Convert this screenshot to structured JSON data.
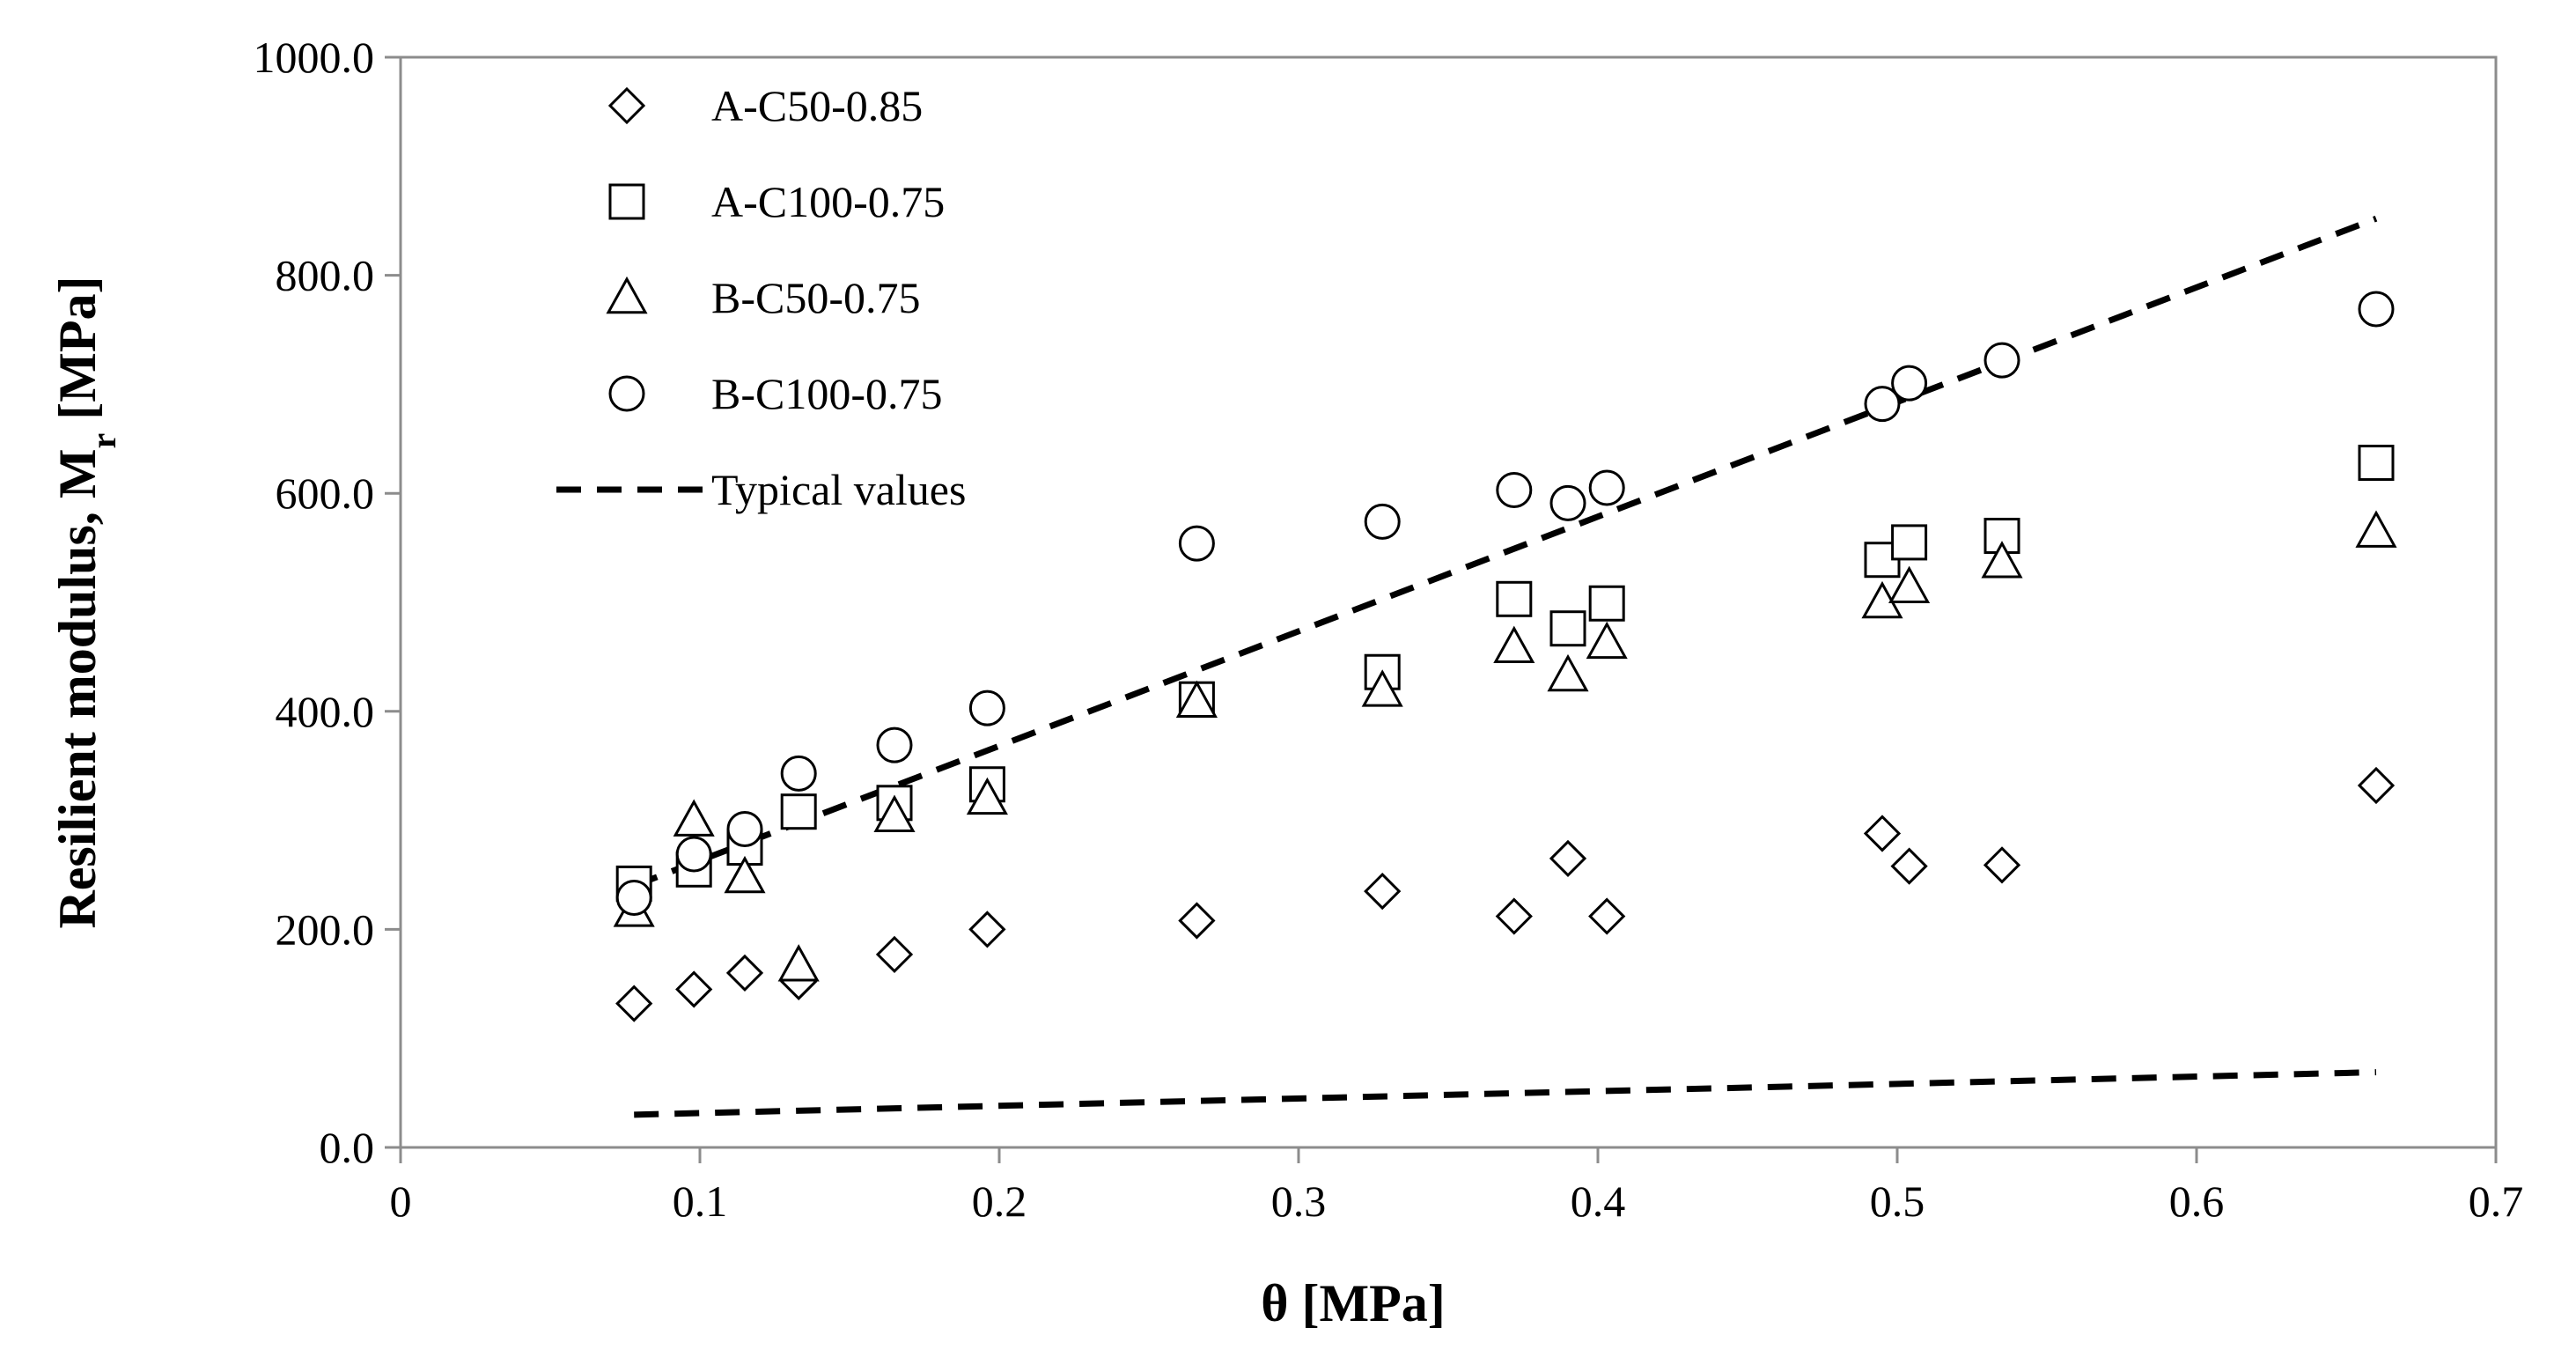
{
  "chart_data": {
    "type": "scatter",
    "title": "",
    "xlabel": "θ [MPa]",
    "ylabel_main": "Resilient modulus, M",
    "ylabel_sub": "r",
    "ylabel_unit": " [MPa]",
    "xlim": [
      0,
      0.7
    ],
    "ylim": [
      0,
      1000
    ],
    "x_ticks": [
      0,
      0.1,
      0.2,
      0.3,
      0.4,
      0.5,
      0.6,
      0.7
    ],
    "x_tick_labels": [
      "0",
      "0.1",
      "0.2",
      "0.3",
      "0.4",
      "0.5",
      "0.6",
      "0.7"
    ],
    "y_ticks": [
      0,
      200,
      400,
      600,
      800,
      1000
    ],
    "y_tick_labels": [
      "0.0",
      "200.0",
      "400.0",
      "600.0",
      "800.0",
      "1000.0"
    ],
    "grid": false,
    "legend_position": "top-left",
    "series": [
      {
        "name": "A-C50-0.85",
        "marker": "diamond",
        "x": [
          0.078,
          0.098,
          0.115,
          0.133,
          0.165,
          0.196,
          0.266,
          0.328,
          0.372,
          0.39,
          0.403,
          0.495,
          0.504,
          0.535,
          0.66
        ],
        "y": [
          132,
          145,
          160,
          152,
          177,
          200,
          208,
          235,
          212,
          265,
          212,
          288,
          258,
          259,
          332
        ]
      },
      {
        "name": "A-C100-0.75",
        "marker": "square",
        "x": [
          0.078,
          0.098,
          0.115,
          0.133,
          0.165,
          0.196,
          0.266,
          0.328,
          0.372,
          0.39,
          0.403,
          0.495,
          0.504,
          0.535,
          0.66
        ],
        "y": [
          242,
          255,
          275,
          308,
          316,
          333,
          411,
          436,
          503,
          476,
          499,
          539,
          555,
          561,
          628
        ]
      },
      {
        "name": "B-C50-0.75",
        "marker": "triangle",
        "x": [
          0.078,
          0.098,
          0.115,
          0.133,
          0.165,
          0.196,
          0.266,
          0.328,
          0.372,
          0.39,
          0.403,
          0.495,
          0.504,
          0.535,
          0.66
        ],
        "y": [
          217,
          300,
          248,
          167,
          304,
          320,
          409,
          419,
          459,
          433,
          463,
          500,
          514,
          537,
          565
        ]
      },
      {
        "name": "B-C100-0.75",
        "marker": "circle",
        "x": [
          0.078,
          0.098,
          0.115,
          0.133,
          0.165,
          0.196,
          0.266,
          0.328,
          0.372,
          0.39,
          0.403,
          0.495,
          0.504,
          0.535,
          0.66
        ],
        "y": [
          229,
          269,
          292,
          343,
          369,
          403,
          554,
          574,
          603,
          591,
          605,
          682,
          701,
          722,
          769
        ]
      }
    ],
    "reference_lines": {
      "name": "Typical values",
      "style": "dashed",
      "lines": [
        {
          "x": [
            0.078,
            0.66
          ],
          "y": [
            240,
            852
          ]
        },
        {
          "x": [
            0.078,
            0.66
          ],
          "y": [
            30,
            69
          ]
        }
      ]
    }
  }
}
